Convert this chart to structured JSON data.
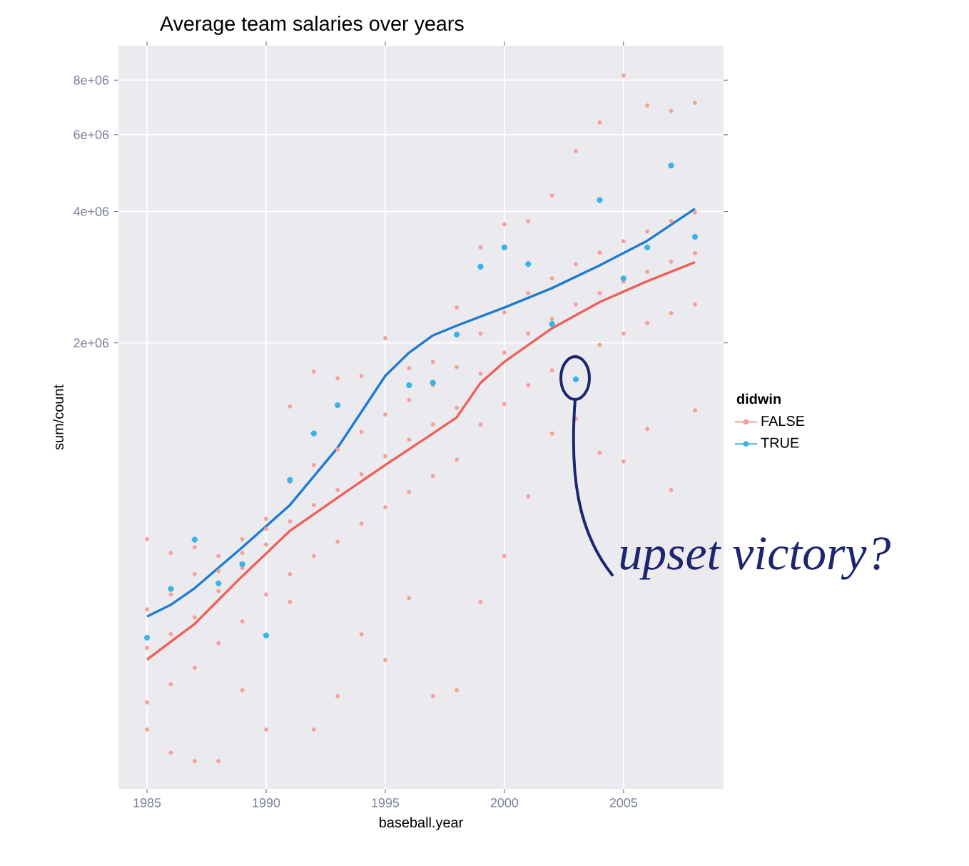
{
  "chart_data": {
    "type": "scatter",
    "title": "Average team salaries over years",
    "xlabel": "baseball.year",
    "ylabel": "sum/count",
    "legend_title": "didwin",
    "xlim": [
      1983.8,
      2009.2
    ],
    "ylim": [
      190000,
      9600000
    ],
    "log": "y",
    "grid": true,
    "legend": "right",
    "marker": "circle",
    "xticks": [
      1985,
      1990,
      1995,
      2000,
      2005
    ],
    "yticks": [
      {
        "value": 2000000,
        "label": "2e+06"
      },
      {
        "value": 4000000,
        "label": "4e+06"
      },
      {
        "value": 6000000,
        "label": "6e+06"
      },
      {
        "value": 8000000,
        "label": "8e+06"
      }
    ],
    "series": [
      {
        "name": "FALSE",
        "color": "#f4a09a",
        "x": [
          1985,
          1985,
          1985,
          1985,
          1985,
          1986,
          1986,
          1986,
          1986,
          1986,
          1987,
          1987,
          1987,
          1987,
          1987,
          1988,
          1988,
          1988,
          1988,
          1988,
          1989,
          1989,
          1989,
          1989,
          1989,
          1990,
          1990,
          1990,
          1990,
          1990,
          1991,
          1991,
          1991,
          1991,
          1991,
          1992,
          1992,
          1992,
          1992,
          1992,
          1993,
          1993,
          1993,
          1993,
          1993,
          1994,
          1994,
          1994,
          1994,
          1994,
          1995,
          1995,
          1995,
          1995,
          1995,
          1996,
          1996,
          1996,
          1996,
          1996,
          1997,
          1997,
          1997,
          1997,
          1997,
          1998,
          1998,
          1998,
          1998,
          1998,
          1999,
          1999,
          1999,
          1999,
          1999,
          2000,
          2000,
          2000,
          2000,
          2000,
          2001,
          2001,
          2001,
          2001,
          2001,
          2002,
          2002,
          2002,
          2002,
          2002,
          2003,
          2003,
          2003,
          2003,
          2003,
          2004,
          2004,
          2004,
          2004,
          2004,
          2005,
          2005,
          2005,
          2005,
          2005,
          2006,
          2006,
          2006,
          2006,
          2006,
          2007,
          2007,
          2007,
          2007,
          2007,
          2008,
          2008,
          2008,
          2008,
          2008
        ],
        "values": [
          260000,
          300000,
          400000,
          490000,
          710000,
          230000,
          330000,
          430000,
          530000,
          660000,
          220000,
          360000,
          470000,
          590000,
          680000,
          220000,
          410000,
          540000,
          600000,
          650000,
          320000,
          460000,
          610000,
          660000,
          710000,
          260000,
          530000,
          690000,
          750000,
          790000,
          510000,
          590000,
          780000,
          960000,
          1430000,
          260000,
          650000,
          850000,
          1050000,
          1720000,
          310000,
          700000,
          920000,
          1140000,
          1660000,
          430000,
          770000,
          1000000,
          1250000,
          1680000,
          375000,
          840000,
          1100000,
          1370000,
          2050000,
          520000,
          910000,
          1200000,
          1480000,
          1750000,
          310000,
          990000,
          1300000,
          1600000,
          1810000,
          320000,
          1080000,
          1420000,
          1760000,
          2410000,
          510000,
          1300000,
          1700000,
          2100000,
          3310000,
          650000,
          1450000,
          1900000,
          2350000,
          3740000,
          890000,
          1600000,
          2100000,
          2600000,
          3800000,
          1240000,
          1730000,
          2270000,
          2810000,
          4350000,
          1340000,
          1860000,
          2450000,
          3030000,
          5500000,
          1120000,
          1980000,
          2600000,
          3220000,
          6400000,
          1070000,
          2100000,
          2760000,
          3420000,
          8200000,
          1270000,
          2220000,
          2910000,
          3600000,
          7000000,
          920000,
          2340000,
          3070000,
          3800000,
          6800000,
          1400000,
          2450000,
          3210000,
          3980000,
          7100000
        ]
      },
      {
        "name": "TRUE",
        "color": "#3ab4e6",
        "x": [
          1985,
          1986,
          1987,
          1988,
          1989,
          1990,
          1991,
          1992,
          1993,
          1996,
          1997,
          1998,
          1999,
          2000,
          2001,
          2002,
          2003,
          2004,
          2005,
          2006,
          2007,
          2008
        ],
        "values": [
          422000,
          546000,
          708000,
          562000,
          622000,
          427000,
          970000,
          1240000,
          1440000,
          1600000,
          1620000,
          2090000,
          2990000,
          3310000,
          3030000,
          2210000,
          1650000,
          4250000,
          2810000,
          3310000,
          5100000,
          3500000
        ]
      },
      {
        "type": "line",
        "marker": "none",
        "color": "#f0605a",
        "x": [
          1985,
          1987,
          1989,
          1991,
          1993,
          1995,
          1997,
          1998,
          1999,
          2000,
          2002,
          2004,
          2006,
          2008
        ],
        "values": [
          376000,
          454000,
          584000,
          742000,
          884000,
          1050000,
          1240000,
          1350000,
          1620000,
          1810000,
          2160000,
          2480000,
          2770000,
          3060000
        ]
      },
      {
        "type": "line",
        "marker": "none",
        "color": "#1f7bd0",
        "x": [
          1985,
          1986,
          1987,
          1989,
          1991,
          1993,
          1995,
          1996,
          1997,
          1998,
          2000,
          2002,
          2004,
          2006,
          2008
        ],
        "values": [
          472000,
          502000,
          548000,
          680000,
          850000,
          1150000,
          1680000,
          1900000,
          2080000,
          2190000,
          2410000,
          2670000,
          3010000,
          3430000,
          4060000
        ]
      }
    ],
    "annotations": [
      "upset victory?"
    ]
  }
}
